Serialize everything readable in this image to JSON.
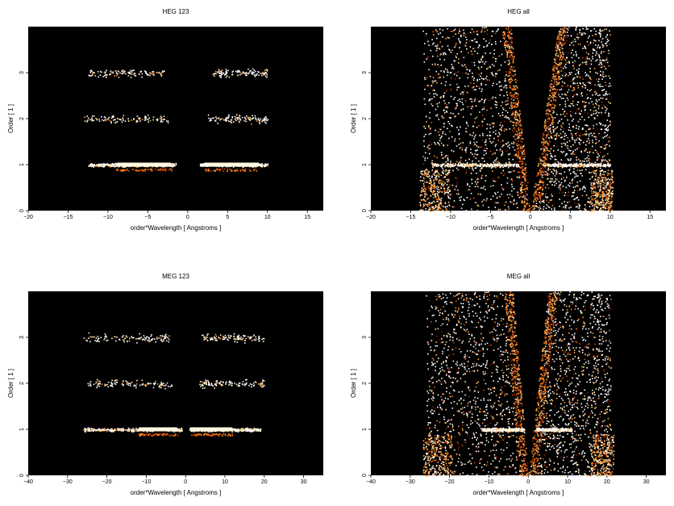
{
  "figure": {
    "background": "#ffffff",
    "plot_background": "#000000"
  },
  "chart_data": [
    {
      "id": "heg123",
      "type": "heatmap",
      "title": "HEG 123",
      "xlabel": "order*Wavelength [ Angstroms ]",
      "ylabel": "Order [ 1 ]",
      "xlim": [
        -20,
        17
      ],
      "ylim": [
        0,
        4
      ],
      "xticks": [
        -20,
        -15,
        -10,
        -5,
        0,
        5,
        10,
        15
      ],
      "xtick_labels": [
        "−20",
        "−15",
        "−10",
        "−5",
        "0",
        "5",
        "10",
        "15"
      ],
      "yticks": [
        0,
        1,
        2,
        3
      ],
      "ytick_labels": [
        "0",
        "1",
        "2",
        "3"
      ],
      "colormap": "black-red-orange-white",
      "features": [
        {
          "order": 1,
          "x_range": [
            -12.5,
            -1.5
          ],
          "intensity": "high",
          "bright_range": [
            -9,
            -2
          ]
        },
        {
          "order": 1,
          "x_range": [
            1.5,
            10
          ],
          "intensity": "high",
          "bright_range": [
            2,
            9
          ]
        },
        {
          "order": 2,
          "x_range": [
            -13,
            -2.5
          ],
          "intensity": "low"
        },
        {
          "order": 2,
          "x_range": [
            2.5,
            10
          ],
          "intensity": "low"
        },
        {
          "order": 3,
          "x_range": [
            -12.5,
            -3
          ],
          "intensity": "low"
        },
        {
          "order": 3,
          "x_range": [
            3,
            10
          ],
          "intensity": "low"
        }
      ]
    },
    {
      "id": "hegall",
      "type": "heatmap",
      "title": "HEG all",
      "xlabel": "order*Wavelength [ Angstroms ]",
      "ylabel": "Order [ 1 ]",
      "xlim": [
        -20,
        17
      ],
      "ylim": [
        0,
        4
      ],
      "xticks": [
        -20,
        -15,
        -10,
        -5,
        0,
        5,
        10,
        15
      ],
      "xtick_labels": [
        "−20",
        "−15",
        "−10",
        "−5",
        "0",
        "5",
        "10",
        "15"
      ],
      "yticks": [
        0,
        1,
        2,
        3
      ],
      "ytick_labels": [
        "0",
        "1",
        "2",
        "3"
      ],
      "colormap": "black-red-orange-white",
      "features": [
        {
          "shape": "wedge",
          "side": "negative",
          "inner_slope_x_at_y4": -2.5,
          "outer_x": -13.5,
          "intensity": "medium"
        },
        {
          "shape": "wedge",
          "side": "positive",
          "inner_slope_x_at_y4": 3.5,
          "outer_x": 10,
          "intensity": "medium"
        },
        {
          "order": 1,
          "x_range": [
            -12.5,
            -1.5
          ],
          "intensity": "high"
        },
        {
          "order": 1,
          "x_range": [
            1.5,
            10
          ],
          "intensity": "high"
        }
      ]
    },
    {
      "id": "meg123",
      "type": "heatmap",
      "title": "MEG 123",
      "xlabel": "order*Wavelength [ Angstroms ]",
      "ylabel": "Order [ 1 ]",
      "xlim": [
        -40,
        35
      ],
      "ylim": [
        0,
        4
      ],
      "xticks": [
        -40,
        -30,
        -20,
        -10,
        0,
        10,
        20,
        30
      ],
      "xtick_labels": [
        "−40",
        "−30",
        "−20",
        "−10",
        "0",
        "10",
        "20",
        "30"
      ],
      "yticks": [
        0,
        1,
        2,
        3
      ],
      "ytick_labels": [
        "0",
        "1",
        "2",
        "3"
      ],
      "colormap": "black-red-orange-white",
      "features": [
        {
          "order": 1,
          "x_range": [
            -26,
            -1
          ],
          "intensity": "high",
          "bright_range": [
            -12,
            -2
          ]
        },
        {
          "order": 1,
          "x_range": [
            1,
            19
          ],
          "intensity": "high",
          "bright_range": [
            1,
            12
          ]
        },
        {
          "order": 2,
          "x_range": [
            -25,
            -3
          ],
          "intensity": "low"
        },
        {
          "order": 2,
          "x_range": [
            3,
            20
          ],
          "intensity": "low"
        },
        {
          "order": 3,
          "x_range": [
            -26,
            -4
          ],
          "intensity": "low"
        },
        {
          "order": 3,
          "x_range": [
            4,
            20
          ],
          "intensity": "low"
        }
      ]
    },
    {
      "id": "megall",
      "type": "heatmap",
      "title": "MEG all",
      "xlabel": "order*Wavelength [ Angstroms ]",
      "ylabel": "Order [ 1 ]",
      "xlim": [
        -40,
        35
      ],
      "ylim": [
        0,
        4
      ],
      "xticks": [
        -40,
        -30,
        -20,
        -10,
        0,
        10,
        20,
        30
      ],
      "xtick_labels": [
        "−40",
        "−30",
        "−20",
        "−10",
        "0",
        "10",
        "20",
        "30"
      ],
      "yticks": [
        0,
        1,
        2,
        3
      ],
      "ytick_labels": [
        "0",
        "1",
        "2",
        "3"
      ],
      "colormap": "black-red-orange-white",
      "features": [
        {
          "shape": "wedge",
          "side": "negative",
          "inner_slope_x_at_y4": -4,
          "outer_x": -26,
          "intensity": "medium"
        },
        {
          "shape": "wedge",
          "side": "positive",
          "inner_slope_x_at_y4": 5,
          "outer_x": 21,
          "intensity": "medium"
        },
        {
          "order": 1,
          "x_range": [
            -12,
            -1
          ],
          "intensity": "high"
        },
        {
          "order": 1,
          "x_range": [
            2,
            11
          ],
          "intensity": "high"
        }
      ]
    }
  ]
}
